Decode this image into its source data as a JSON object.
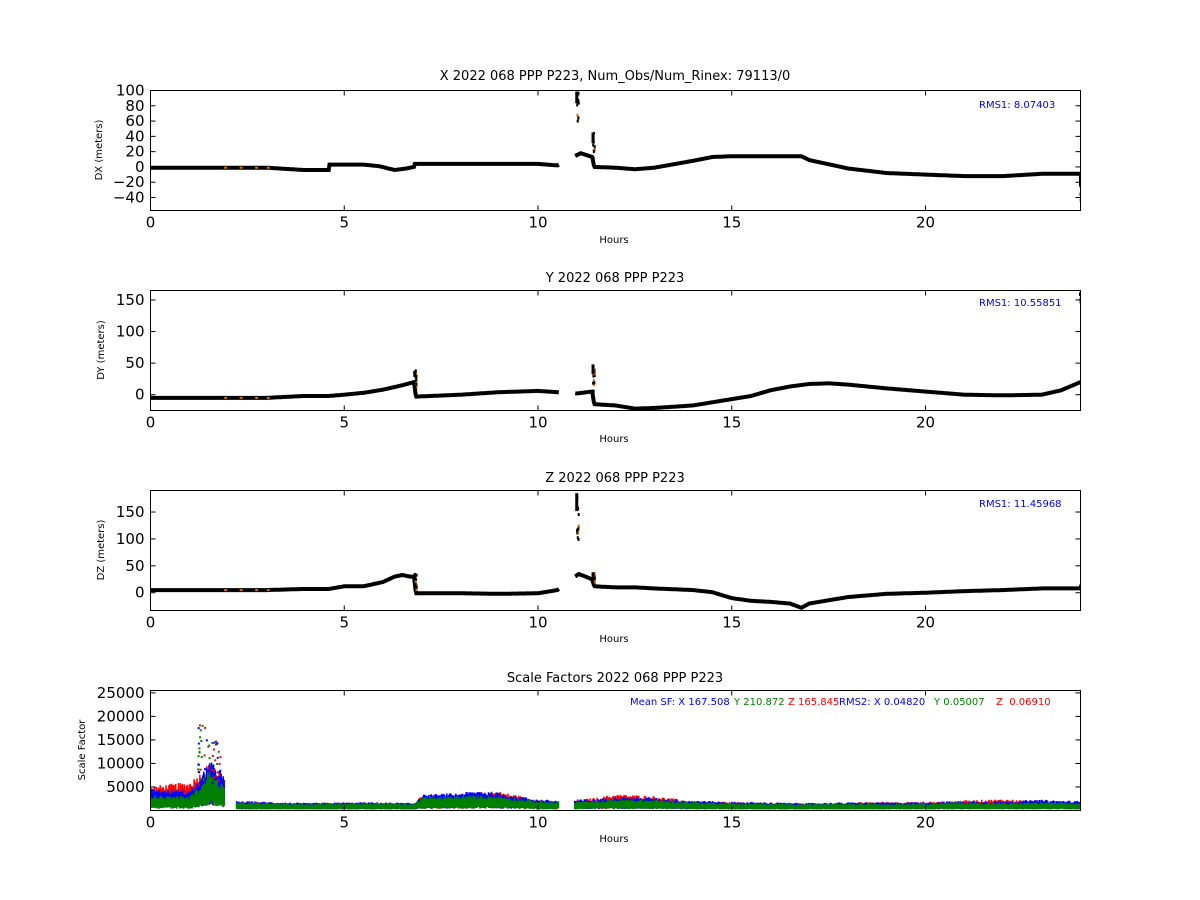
{
  "colors": {
    "blue": "#0000ff",
    "green": "#008000",
    "red": "#ff0000",
    "black": "#000000",
    "orange": "#d2691e"
  },
  "chart_data": [
    {
      "type": "scatter",
      "title": "X 2022 068 PPP  P223, Num_Obs/Num_Rinex: 79113/0",
      "xlabel": "Hours",
      "ylabel": "DX (meters)",
      "xlim": [
        0,
        24
      ],
      "ylim": [
        -57,
        100
      ],
      "xticks": [
        "0",
        "5",
        "10",
        "15",
        "20"
      ],
      "yticks": [
        "100",
        "80",
        "60",
        "40",
        "20",
        "0",
        "−20",
        "−40"
      ],
      "annotation": "RMS1:  8.07403",
      "grid": false,
      "series": [
        {
          "color": "black",
          "x": [
            0,
            1,
            2,
            3,
            3.95,
            4.6,
            4.62,
            5.5,
            5.9,
            6.3,
            6.6,
            6.8,
            6.82,
            8,
            9,
            10.0,
            10.5,
            11.1,
            11.4,
            11.45,
            12,
            12.5,
            13,
            14,
            14.5,
            15,
            15.5,
            16,
            16.8,
            17,
            18,
            19,
            20,
            21,
            22,
            23,
            24
          ],
          "y": [
            -1,
            -1,
            -1,
            -1,
            -4,
            -4,
            3,
            3,
            1,
            -4,
            -2,
            0,
            4,
            4,
            4,
            4,
            2,
            18,
            13,
            0,
            -1,
            -3,
            -1,
            8,
            13,
            14,
            14,
            14,
            14,
            9,
            -2,
            -8,
            -10,
            -12,
            -12,
            -9,
            -9
          ],
          "spikes": [
            [
              11.0,
              55,
              100
            ],
            [
              11.42,
              5,
              45
            ],
            [
              24.0,
              -55,
              -10
            ]
          ]
        }
      ]
    },
    {
      "type": "scatter",
      "title": "Y 2022 068 PPP  P223",
      "xlabel": "Hours",
      "ylabel": "DY (meters)",
      "xlim": [
        0,
        24
      ],
      "ylim": [
        -25,
        165
      ],
      "xticks": [
        "0",
        "5",
        "10",
        "15",
        "20"
      ],
      "yticks": [
        "150",
        "100",
        "50",
        "0"
      ],
      "annotation": "RMS1: 10.55851",
      "grid": false,
      "series": [
        {
          "color": "black",
          "x": [
            0,
            1,
            2,
            3,
            3.95,
            4.6,
            5,
            5.5,
            6,
            6.5,
            6.8,
            6.85,
            8,
            9,
            9.5,
            10,
            10.5,
            11,
            11.4,
            11.45,
            12,
            12.5,
            13,
            14,
            14.5,
            15,
            15.5,
            16,
            16.5,
            17,
            17.5,
            18,
            19,
            20,
            21,
            22,
            23,
            23.5,
            24
          ],
          "y": [
            -5,
            -5,
            -5,
            -5,
            -2,
            -2,
            0,
            3,
            8,
            15,
            20,
            -3,
            0,
            4,
            5,
            6,
            4,
            2,
            5,
            -15,
            -17,
            -22,
            -21,
            -17,
            -12,
            -7,
            -2,
            7,
            13,
            17,
            18,
            16,
            10,
            5,
            0,
            -1,
            0,
            7,
            20
          ],
          "spikes": [
            [
              6.82,
              10,
              38
            ],
            [
              11.42,
              5,
              48
            ],
            [
              24.0,
              145,
              162
            ]
          ]
        }
      ]
    },
    {
      "type": "scatter",
      "title": "Z 2022 068 PPP  P223",
      "xlabel": "Hours",
      "ylabel": "DZ (meters)",
      "xlim": [
        0,
        24
      ],
      "ylim": [
        -33,
        190
      ],
      "xticks": [
        "0",
        "5",
        "10",
        "15",
        "20"
      ],
      "yticks": [
        "150",
        "100",
        "50",
        "0"
      ],
      "annotation": "RMS1: 11.45968",
      "grid": false,
      "series": [
        {
          "color": "black",
          "x": [
            0,
            1,
            2,
            3,
            3.95,
            4.6,
            5,
            5.5,
            6,
            6.3,
            6.5,
            6.7,
            6.8,
            6.85,
            8,
            9,
            10,
            10.5,
            11.05,
            11.4,
            11.45,
            12,
            12.5,
            13,
            14,
            14.5,
            15,
            15.5,
            16,
            16.5,
            16.8,
            17,
            18,
            19,
            20,
            21,
            22,
            23,
            24
          ],
          "y": [
            5,
            5,
            5,
            5,
            7,
            7,
            12,
            12,
            20,
            30,
            33,
            30,
            30,
            -1,
            -1,
            -2,
            -1,
            5,
            35,
            25,
            12,
            10,
            10,
            8,
            5,
            1,
            -10,
            -15,
            -17,
            -20,
            -28,
            -20,
            -8,
            -2,
            0,
            3,
            5,
            8,
            8
          ],
          "spikes": [
            [
              11.0,
              90,
              185
            ],
            [
              6.82,
              0,
              35
            ],
            [
              11.42,
              15,
              38
            ],
            [
              24.0,
              5,
              15
            ]
          ]
        }
      ]
    },
    {
      "type": "scatter",
      "title": "Scale Factors 2022 068 PPP  P223",
      "xlabel": "Hours",
      "ylabel": "Scale Factor",
      "xlim": [
        0,
        24
      ],
      "ylim": [
        0,
        25500
      ],
      "xticks": [
        "0",
        "5",
        "10",
        "15",
        "20"
      ],
      "yticks": [
        "25000",
        "20000",
        "15000",
        "10000",
        "5000"
      ],
      "annotations": [
        {
          "text": "Mean SF: X 167.508",
          "color": "blue"
        },
        {
          "text": "Y 210.872",
          "color": "green"
        },
        {
          "text": "Z 165.845",
          "color": "red"
        },
        {
          "text": "RMS2: X  0.04820",
          "color": "blue"
        },
        {
          "text": "Y  0.05007",
          "color": "green"
        },
        {
          "text": "Z  0.06910",
          "color": "red"
        }
      ],
      "grid": false,
      "series": [
        {
          "name": "X",
          "color": "blue",
          "x": [
            0,
            0.5,
            1,
            1.3,
            1.5,
            1.8,
            2.2,
            3,
            4,
            5,
            6,
            6.8,
            7,
            8,
            8.5,
            9,
            10,
            10.5,
            11.5,
            12,
            13,
            14,
            15,
            16,
            17,
            18,
            19,
            20,
            21,
            22,
            23,
            24
          ],
          "y": [
            3500,
            3300,
            3200,
            5000,
            8000,
            6500,
            1500,
            1400,
            1200,
            1300,
            1300,
            1200,
            2500,
            2800,
            3200,
            2800,
            1800,
            1600,
            1800,
            2200,
            2000,
            1600,
            1400,
            1300,
            1200,
            1300,
            1300,
            1400,
            1500,
            1500,
            1700,
            1500
          ]
        },
        {
          "name": "Y",
          "color": "green",
          "x": [
            0,
            0.5,
            1,
            1.3,
            1.5,
            1.8,
            2.2,
            3,
            4,
            5,
            6,
            6.8,
            7,
            8,
            8.5,
            9,
            10,
            10.5,
            11.5,
            12,
            13,
            14,
            15,
            16,
            17,
            18,
            19,
            20,
            21,
            22,
            23,
            24
          ],
          "y": [
            2500,
            2300,
            2300,
            4000,
            6500,
            4500,
            1300,
            1200,
            1100,
            1200,
            1200,
            1100,
            2100,
            2300,
            2400,
            2300,
            1500,
            1400,
            1500,
            1800,
            1700,
            1400,
            1200,
            1100,
            1100,
            1100,
            1100,
            1200,
            1300,
            1200,
            1300,
            1200
          ]
        },
        {
          "name": "Z",
          "color": "red",
          "x": [
            0,
            0.5,
            1,
            1.3,
            1.5,
            1.8,
            2.2,
            3,
            4,
            5,
            6,
            6.8,
            7,
            8,
            8.5,
            9,
            10,
            10.5,
            11.5,
            12,
            13,
            14,
            15,
            16,
            17,
            18,
            19,
            20,
            21,
            22,
            23,
            24
          ],
          "y": [
            3800,
            4200,
            4500,
            6000,
            7500,
            5500,
            1400,
            1300,
            1150,
            1250,
            1250,
            1150,
            2400,
            2600,
            2900,
            3000,
            1700,
            1500,
            2000,
            2600,
            2300,
            1500,
            1300,
            1250,
            1150,
            1250,
            1400,
            1300,
            1600,
            1800,
            1500,
            1300
          ]
        }
      ]
    }
  ]
}
